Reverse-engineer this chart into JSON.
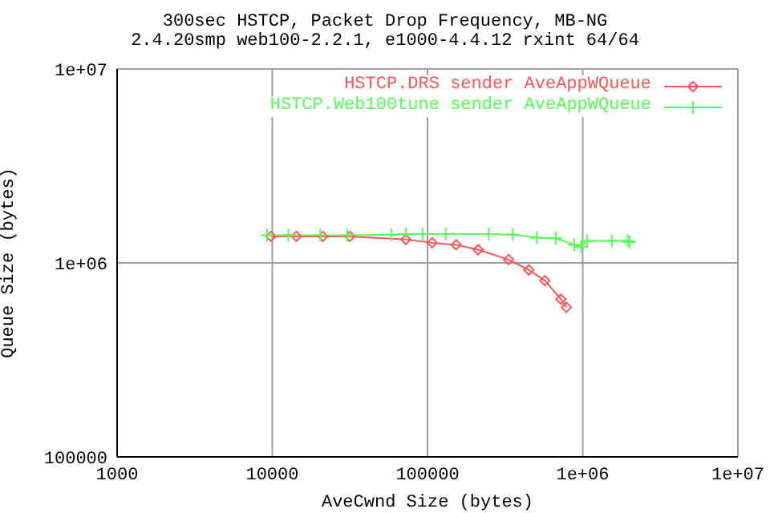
{
  "chart_data": {
    "type": "line",
    "title": "300sec HSTCP, Packet Drop Frequency, MB-NG",
    "subtitle": "2.4.20smp web100-2.2.1, e1000-4.4.12 rxint 64/64",
    "xlabel": "AveCwnd Size (bytes)",
    "ylabel": "Queue Size (bytes)",
    "log": "xy",
    "grid": true,
    "legend": "top right",
    "xlim": [
      1000,
      10000000
    ],
    "xticks": [
      1000,
      10000,
      100000,
      {
        "value": 1000000,
        "label": "1e+06"
      },
      {
        "value": 10000000,
        "label": "1e+07"
      }
    ],
    "ylim": [
      100000,
      10000000
    ],
    "yticks": [
      100000,
      {
        "value": 1000000,
        "label": "1e+06"
      },
      {
        "value": 10000000,
        "label": "1e+07"
      }
    ],
    "series": [
      {
        "name": "HSTCP.DRS sender AveAppWQueue",
        "color": "#ff5555",
        "marker": "diamond",
        "x": [
          9800,
          14300,
          21200,
          31600,
          72600,
          107000,
          153000,
          212000,
          333000,
          450000,
          571000,
          724000,
          785000
        ],
        "values": [
          1370000,
          1370000,
          1370000,
          1370000,
          1320000,
          1270000,
          1240000,
          1170000,
          1040000,
          920000,
          810000,
          650000,
          590000
        ]
      },
      {
        "name": "HSTCP.Web100tune sender AveAppWQueue",
        "color": "#55ff55",
        "marker": "cross",
        "x": [
          9250,
          12700,
          20400,
          30400,
          58600,
          72600,
          93000,
          131000,
          248000,
          355000,
          507000,
          670000,
          883000,
          977000,
          1070000,
          1540000,
          1950000,
          2000000
        ],
        "values": [
          1390000,
          1390000,
          1390000,
          1390000,
          1400000,
          1410000,
          1410000,
          1410000,
          1410000,
          1400000,
          1350000,
          1340000,
          1240000,
          1210000,
          1300000,
          1300000,
          1300000,
          1280000
        ]
      }
    ]
  }
}
